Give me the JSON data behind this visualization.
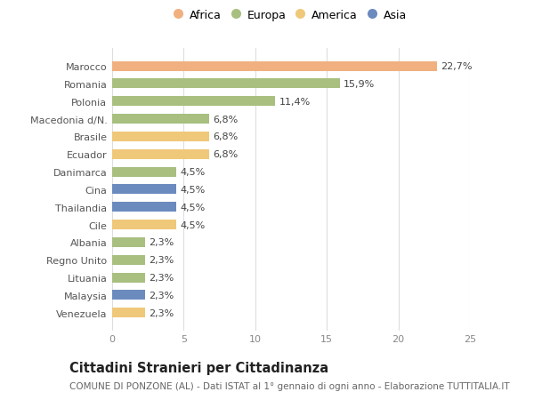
{
  "categories": [
    "Venezuela",
    "Malaysia",
    "Lituania",
    "Regno Unito",
    "Albania",
    "Cile",
    "Thailandia",
    "Cina",
    "Danimarca",
    "Ecuador",
    "Brasile",
    "Macedonia d/N.",
    "Polonia",
    "Romania",
    "Marocco"
  ],
  "values": [
    2.3,
    2.3,
    2.3,
    2.3,
    2.3,
    4.5,
    4.5,
    4.5,
    4.5,
    6.8,
    6.8,
    6.8,
    11.4,
    15.9,
    22.7
  ],
  "labels": [
    "2,3%",
    "2,3%",
    "2,3%",
    "2,3%",
    "2,3%",
    "4,5%",
    "4,5%",
    "4,5%",
    "4,5%",
    "6,8%",
    "6,8%",
    "6,8%",
    "11,4%",
    "15,9%",
    "22,7%"
  ],
  "colors": [
    "#f0c87a",
    "#6b8bbf",
    "#a8bf80",
    "#a8bf80",
    "#a8bf80",
    "#f0c87a",
    "#6b8bbf",
    "#6b8bbf",
    "#a8bf80",
    "#f0c87a",
    "#f0c87a",
    "#a8bf80",
    "#a8bf80",
    "#a8bf80",
    "#f0b080"
  ],
  "legend_labels": [
    "Africa",
    "Europa",
    "America",
    "Asia"
  ],
  "legend_colors": [
    "#f0b080",
    "#a8bf80",
    "#f0c87a",
    "#6b8bbf"
  ],
  "title": "Cittadini Stranieri per Cittadinanza",
  "subtitle": "COMUNE DI PONZONE (AL) - Dati ISTAT al 1° gennaio di ogni anno - Elaborazione TUTTITALIA.IT",
  "xlim": [
    0,
    25
  ],
  "xticks": [
    0,
    5,
    10,
    15,
    20,
    25
  ],
  "background_color": "#ffffff",
  "bar_height": 0.55,
  "label_fontsize": 8,
  "tick_fontsize": 8,
  "title_fontsize": 10.5,
  "subtitle_fontsize": 7.5,
  "legend_fontsize": 9,
  "marker_size": 9
}
